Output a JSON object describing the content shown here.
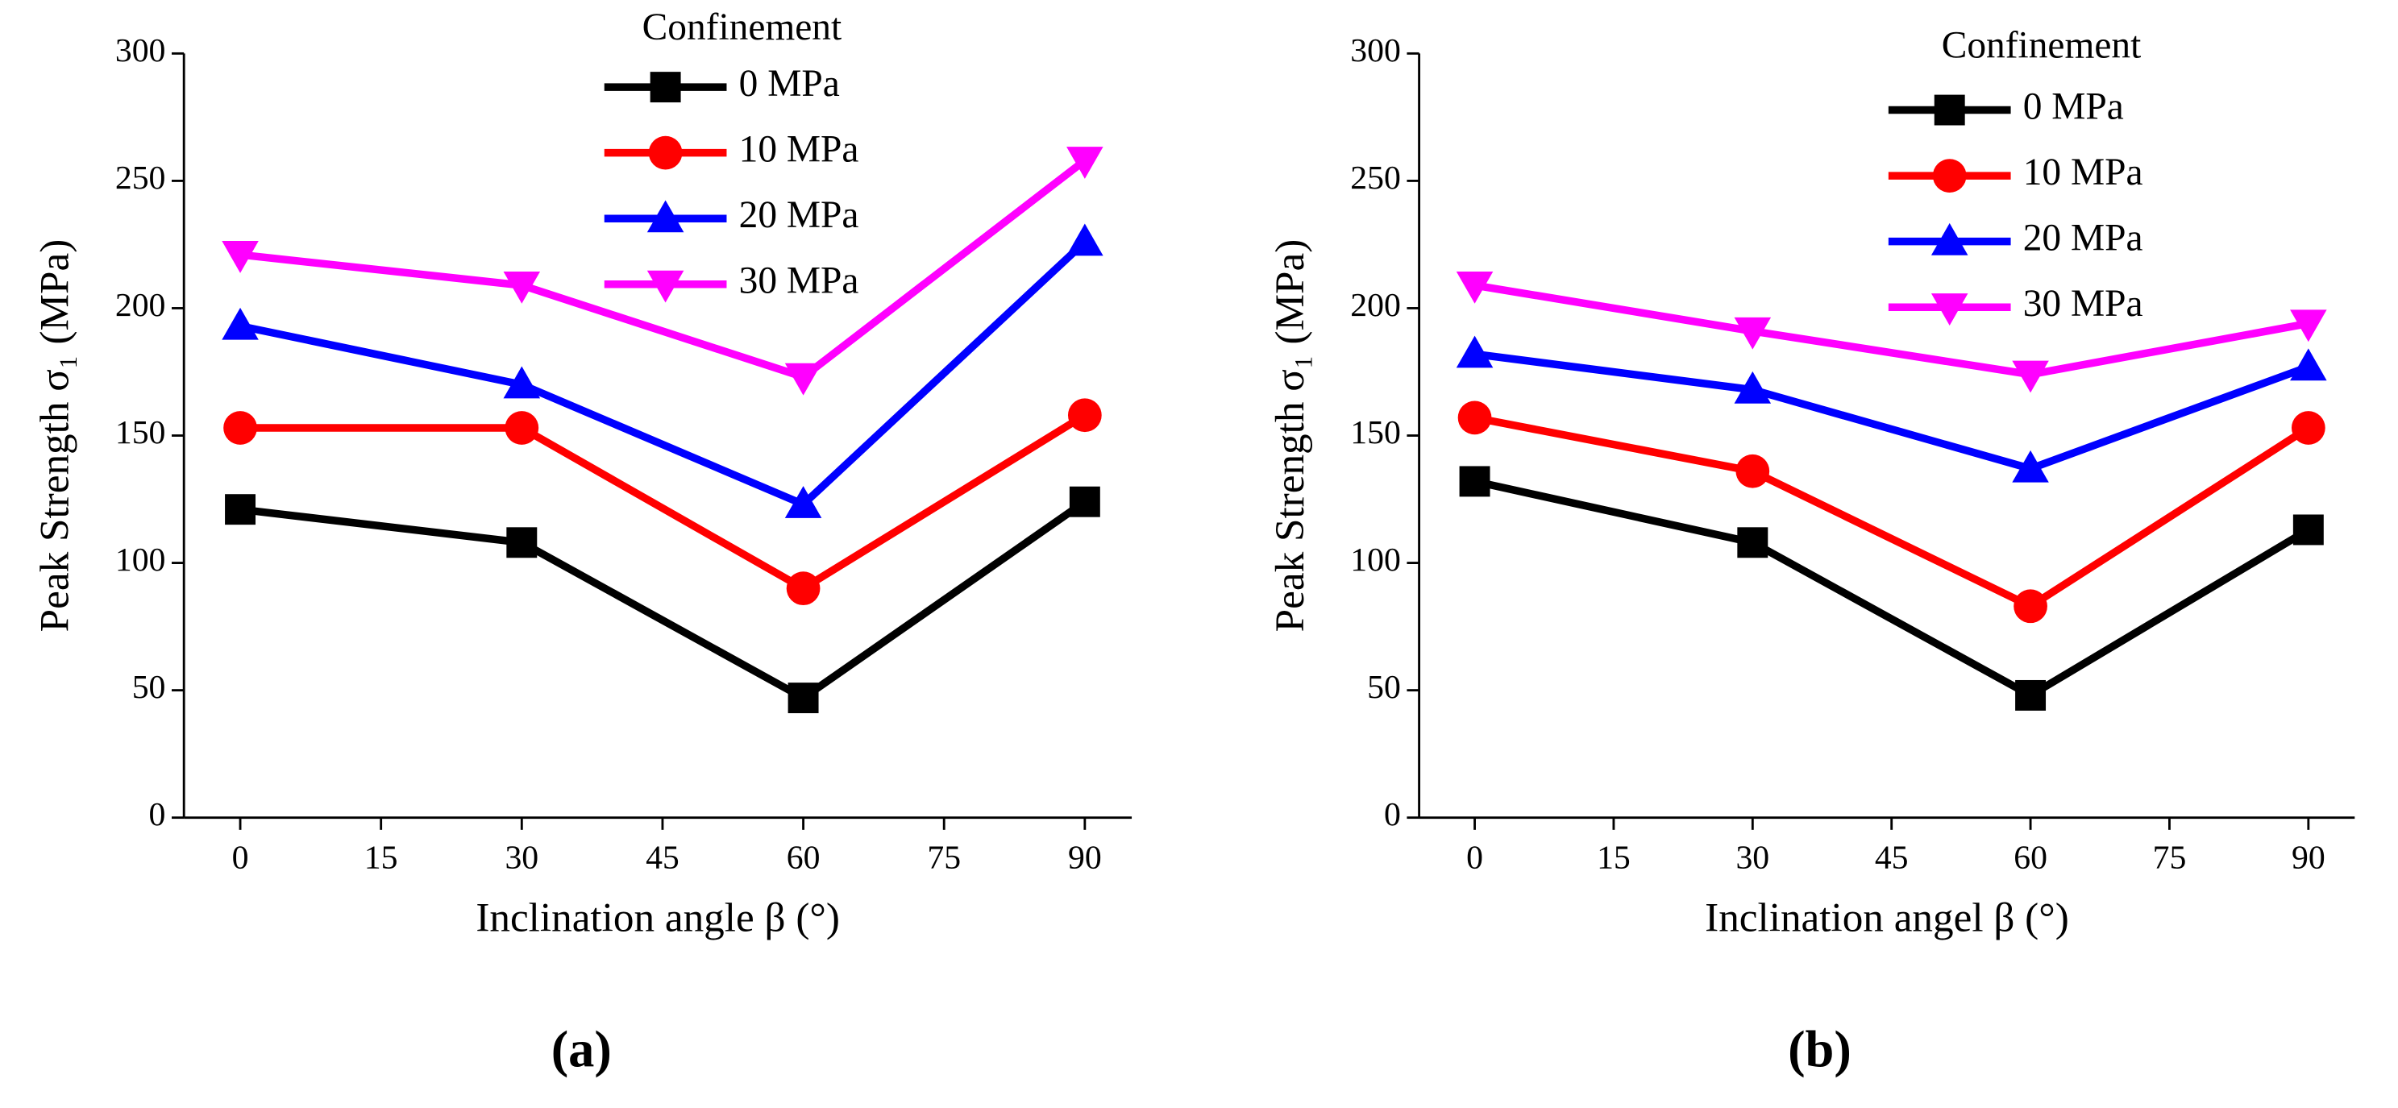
{
  "chart_data": [
    {
      "type": "line",
      "panel_label": "(a)",
      "xlabel": "Inclination angle β (°)",
      "ylabel": "Peak Strength σ₁ (MPa)",
      "legend_title": "Confinement",
      "x": [
        0,
        30,
        60,
        90
      ],
      "xlim": [
        -6,
        95
      ],
      "xticks": [
        0,
        15,
        30,
        45,
        60,
        75,
        90
      ],
      "ylim": [
        0,
        300
      ],
      "yticks": [
        0,
        50,
        100,
        150,
        200,
        250,
        300
      ],
      "series": [
        {
          "name": "0 MPa",
          "color": "#000000",
          "marker": "square",
          "values": [
            121,
            108,
            47,
            124
          ]
        },
        {
          "name": "10 MPa",
          "color": "#ff0000",
          "marker": "circle",
          "values": [
            153,
            153,
            90,
            158
          ]
        },
        {
          "name": "20 MPa",
          "color": "#0000ff",
          "marker": "triangle-up",
          "values": [
            193,
            170,
            123,
            226
          ]
        },
        {
          "name": "30 MPa",
          "color": "#ff00ff",
          "marker": "triangle-down",
          "values": [
            221,
            209,
            173,
            258
          ]
        }
      ]
    },
    {
      "type": "line",
      "panel_label": "(b)",
      "xlabel": "Inclination angel β (°)",
      "ylabel": "Peak Strength σ₁ (MPa)",
      "legend_title": "Confinement",
      "x": [
        0,
        30,
        60,
        90
      ],
      "xlim": [
        -6,
        95
      ],
      "xticks": [
        0,
        15,
        30,
        45,
        60,
        75,
        90
      ],
      "ylim": [
        0,
        300
      ],
      "yticks": [
        0,
        50,
        100,
        150,
        200,
        250,
        300
      ],
      "series": [
        {
          "name": "0 MPa",
          "color": "#000000",
          "marker": "square",
          "values": [
            132,
            108,
            48,
            113
          ]
        },
        {
          "name": "10 MPa",
          "color": "#ff0000",
          "marker": "circle",
          "values": [
            157,
            136,
            83,
            153
          ]
        },
        {
          "name": "20 MPa",
          "color": "#0000ff",
          "marker": "triangle-up",
          "values": [
            182,
            168,
            137,
            177
          ]
        },
        {
          "name": "30 MPa",
          "color": "#ff00ff",
          "marker": "triangle-down",
          "values": [
            209,
            191,
            174,
            194
          ]
        }
      ]
    }
  ]
}
